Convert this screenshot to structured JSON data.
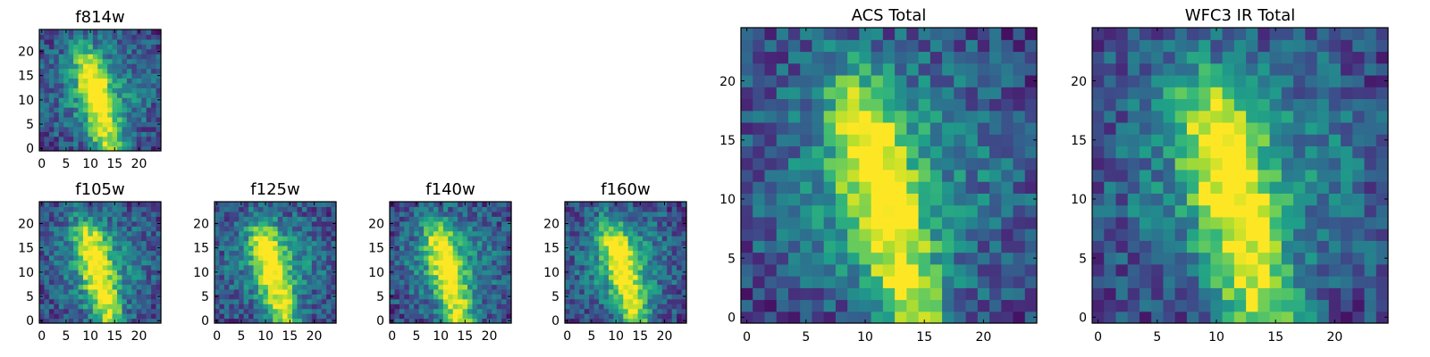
{
  "chart_data": [
    {
      "type": "heatmap",
      "title": "f814w",
      "grid_size": 25,
      "seed": 11,
      "x_ticks": [
        0,
        5,
        10,
        15,
        20
      ],
      "y_ticks": [
        0,
        5,
        10,
        15,
        20
      ],
      "xlim": [
        0,
        24
      ],
      "ylim": [
        0,
        24
      ],
      "grid": false,
      "colormap": "viridis"
    },
    {
      "type": "heatmap",
      "title": "f105w",
      "grid_size": 25,
      "seed": 23,
      "x_ticks": [
        0,
        5,
        10,
        15,
        20
      ],
      "y_ticks": [
        0,
        5,
        10,
        15,
        20
      ],
      "xlim": [
        0,
        24
      ],
      "ylim": [
        0,
        24
      ],
      "grid": false,
      "colormap": "viridis"
    },
    {
      "type": "heatmap",
      "title": "f125w",
      "grid_size": 25,
      "seed": 37,
      "x_ticks": [
        0,
        5,
        10,
        15,
        20
      ],
      "y_ticks": [
        0,
        5,
        10,
        15,
        20
      ],
      "xlim": [
        0,
        24
      ],
      "ylim": [
        0,
        24
      ],
      "grid": false,
      "colormap": "viridis"
    },
    {
      "type": "heatmap",
      "title": "f140w",
      "grid_size": 25,
      "seed": 41,
      "x_ticks": [
        0,
        5,
        10,
        15,
        20
      ],
      "y_ticks": [
        0,
        5,
        10,
        15,
        20
      ],
      "xlim": [
        0,
        24
      ],
      "ylim": [
        0,
        24
      ],
      "grid": false,
      "colormap": "viridis"
    },
    {
      "type": "heatmap",
      "title": "f160w",
      "grid_size": 25,
      "seed": 53,
      "x_ticks": [
        0,
        5,
        10,
        15,
        20
      ],
      "y_ticks": [
        0,
        5,
        10,
        15,
        20
      ],
      "xlim": [
        0,
        24
      ],
      "ylim": [
        0,
        24
      ],
      "grid": false,
      "colormap": "viridis"
    },
    {
      "type": "heatmap",
      "title": "ACS Total",
      "grid_size": 25,
      "seed": 67,
      "x_ticks": [
        0,
        5,
        10,
        15,
        20
      ],
      "y_ticks": [
        0,
        5,
        10,
        15,
        20
      ],
      "xlim": [
        0,
        24
      ],
      "ylim": [
        0,
        24
      ],
      "grid": false,
      "colormap": "viridis"
    },
    {
      "type": "heatmap",
      "title": "WFC3 IR Total",
      "grid_size": 25,
      "seed": 79,
      "x_ticks": [
        0,
        5,
        10,
        15,
        20
      ],
      "y_ticks": [
        0,
        5,
        10,
        15,
        20
      ],
      "xlim": [
        0,
        24
      ],
      "ylim": [
        0,
        24
      ],
      "grid": false,
      "colormap": "viridis"
    }
  ]
}
